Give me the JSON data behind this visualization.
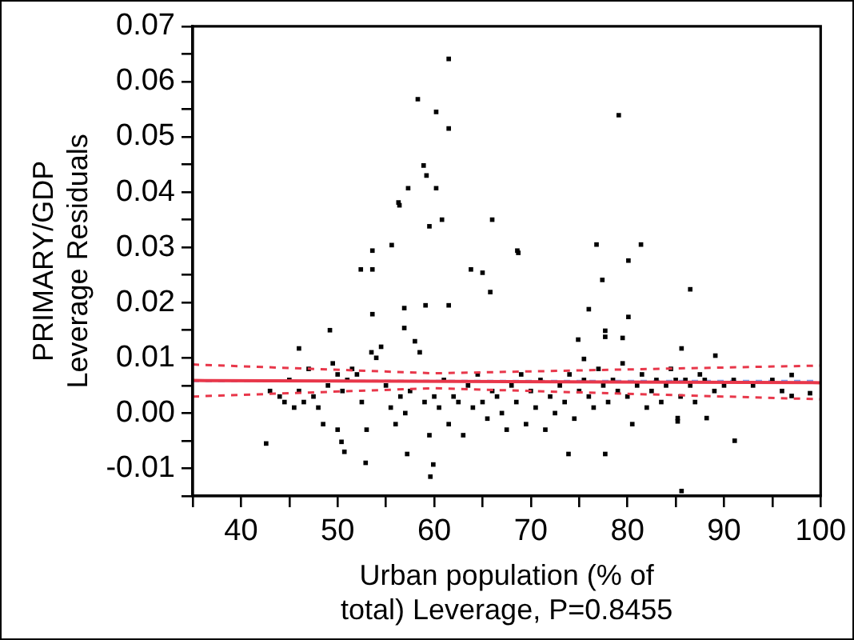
{
  "chart_data": {
    "type": "scatter",
    "xlabel": "Urban population (% of\ntotal) Leverage, P=0.8455",
    "ylabel": "PRIMARY/GDP\nLeverage Residuals",
    "xlim": [
      35,
      100
    ],
    "xticks": [
      {
        "value": 35,
        "label": null
      },
      40,
      {
        "value": 45,
        "label": null
      },
      50,
      {
        "value": 55,
        "label": null
      },
      60,
      {
        "value": 65,
        "label": null
      },
      70,
      {
        "value": 75,
        "label": null
      },
      80,
      {
        "value": 85,
        "label": null
      },
      90,
      {
        "value": 95,
        "label": null
      },
      100
    ],
    "ylim": [
      -0.015,
      0.07
    ],
    "yticks": [
      {
        "value": -0.015,
        "label": null
      },
      {
        "value": -0.01,
        "label": "-0.01"
      },
      {
        "value": -0.005,
        "label": null
      },
      {
        "value": 0,
        "label": "0.00"
      },
      {
        "value": 0.005,
        "label": null
      },
      {
        "value": 0.01,
        "label": "0.01"
      },
      {
        "value": 0.015,
        "label": null
      },
      {
        "value": 0.02,
        "label": "0.02"
      },
      {
        "value": 0.025,
        "label": null
      },
      {
        "value": 0.03,
        "label": "0.03"
      },
      {
        "value": 0.035,
        "label": null
      },
      {
        "value": 0.04,
        "label": "0.04"
      },
      {
        "value": 0.045,
        "label": null
      },
      {
        "value": 0.05,
        "label": "0.05"
      },
      {
        "value": 0.055,
        "label": null
      },
      {
        "value": 0.06,
        "label": "0.06"
      },
      {
        "value": 0.065,
        "label": null
      },
      {
        "value": 0.07,
        "label": "0.07"
      }
    ],
    "grid": false,
    "legend": false,
    "ref_lines": [
      {
        "axis": "y",
        "value": 0.0058,
        "color": "#7a9ff0",
        "line_style": "dashed"
      }
    ],
    "series": [
      {
        "color": "#000000",
        "marker": "square",
        "x": [
          61.5,
          58.3,
          60.2,
          61.5,
          58.9,
          59.2,
          57.3,
          60.2,
          56.3,
          56.4,
          60.8,
          59.5,
          55.6,
          53.6,
          79.1,
          66,
          68.6,
          76.8,
          81.4,
          52.4,
          53.6,
          53.6,
          56.9,
          56.9,
          59.1,
          61.5,
          63.8,
          65,
          49.2,
          46,
          42.6,
          52.9,
          59.6,
          59.9,
          57.2,
          50.4,
          50.7,
          50,
          68.7,
          80.1,
          77.4,
          65.8,
          86.5,
          76,
          80.1,
          77.7,
          77.7,
          79.5,
          74.9,
          75.5,
          85.6,
          89.1,
          85.6,
          91.1,
          77.7,
          73.9,
          85.2,
          85.2,
          88.2,
          98.9,
          97,
          97,
          43,
          44,
          44.5,
          45,
          45.5,
          46,
          46.5,
          47,
          47.5,
          48,
          48.5,
          49,
          49.5,
          50,
          50.5,
          51,
          51.5,
          52,
          52.5,
          53,
          53.5,
          54,
          54.5,
          55,
          55.5,
          56,
          56.5,
          57,
          57.5,
          58,
          58.5,
          59,
          59.5,
          60,
          60.5,
          61,
          61.5,
          62,
          62.5,
          63,
          63.5,
          64,
          64.5,
          65,
          65.5,
          66,
          66.5,
          67,
          67.5,
          68,
          68.5,
          69,
          69.5,
          70,
          70.5,
          71,
          71.5,
          72,
          72.5,
          73,
          73.5,
          74,
          74.5,
          75,
          75.5,
          76,
          76.5,
          77,
          77.5,
          78,
          78.5,
          79,
          79.5,
          80,
          80.5,
          81,
          81.5,
          82,
          82.5,
          83,
          83.5,
          84,
          84.5,
          85,
          85.5,
          86,
          86.5,
          87,
          87.5,
          88,
          89,
          90,
          91,
          93,
          95,
          96
        ],
        "values": [
          0.0641,
          0.0568,
          0.0545,
          0.0515,
          0.0448,
          0.043,
          0.0407,
          0.0407,
          0.0381,
          0.0376,
          0.035,
          0.0338,
          0.0304,
          0.0294,
          0.0539,
          0.035,
          0.0294,
          0.0305,
          0.0305,
          0.026,
          0.026,
          0.0179,
          0.019,
          0.0154,
          0.0195,
          0.0195,
          0.026,
          0.0254,
          0.015,
          0.0117,
          -0.0055,
          -0.009,
          -0.0115,
          -0.0093,
          -0.0074,
          -0.0052,
          -0.007,
          -0.003,
          0.029,
          0.0276,
          0.0241,
          0.0219,
          0.0224,
          0.0188,
          0.0174,
          0.0149,
          0.0138,
          0.0136,
          0.0133,
          0.0098,
          0.0117,
          0.0104,
          -0.0141,
          -0.005,
          -0.0074,
          -0.0074,
          -0.0009,
          -0.0015,
          -0.0009,
          0.0036,
          0.0069,
          0.0031,
          0.004,
          0.003,
          0.002,
          0.006,
          0.001,
          0.004,
          0.002,
          0.008,
          0.003,
          0.001,
          -0.002,
          0.005,
          0.009,
          0.007,
          0.004,
          0.006,
          0.008,
          0.007,
          0.002,
          -0.003,
          0.011,
          0.01,
          0.012,
          0.005,
          0.001,
          -0.002,
          0.003,
          0,
          0.004,
          0.013,
          0.011,
          0.002,
          -0.004,
          0.003,
          0.001,
          0.006,
          -0.002,
          0.003,
          0.002,
          -0.004,
          0.005,
          0.001,
          0.007,
          0.002,
          -0.001,
          0.004,
          0.003,
          0,
          -0.003,
          0.005,
          0.002,
          0.007,
          -0.002,
          0.004,
          0.001,
          0.006,
          -0.003,
          0.003,
          0,
          0.005,
          0.002,
          0.007,
          -0.001,
          0.004,
          0.006,
          0.003,
          0.001,
          0.008,
          0.005,
          0.002,
          0.006,
          0.004,
          0.009,
          0.003,
          -0.002,
          0.005,
          0.007,
          0.001,
          0.004,
          0.006,
          0.002,
          0.005,
          0.008,
          0.006,
          0.003,
          0.006,
          0.005,
          0.002,
          0.007,
          0.006,
          0.004,
          0.005,
          0.006,
          0.005,
          0.006,
          0.004
        ]
      },
      {
        "type": "line",
        "color": "#e8374a",
        "line_style": "solid",
        "x": [
          35,
          100
        ],
        "values": [
          0.0059,
          0.0055
        ]
      },
      {
        "type": "line",
        "color": "#e8374a",
        "line_style": "dashed",
        "x": [
          35,
          60,
          100
        ],
        "values": [
          0.0088,
          0.0072,
          0.0086
        ]
      },
      {
        "type": "line",
        "color": "#e8374a",
        "line_style": "dashed",
        "x": [
          35,
          60,
          100
        ],
        "values": [
          0.003,
          0.0045,
          0.0025
        ]
      }
    ]
  }
}
